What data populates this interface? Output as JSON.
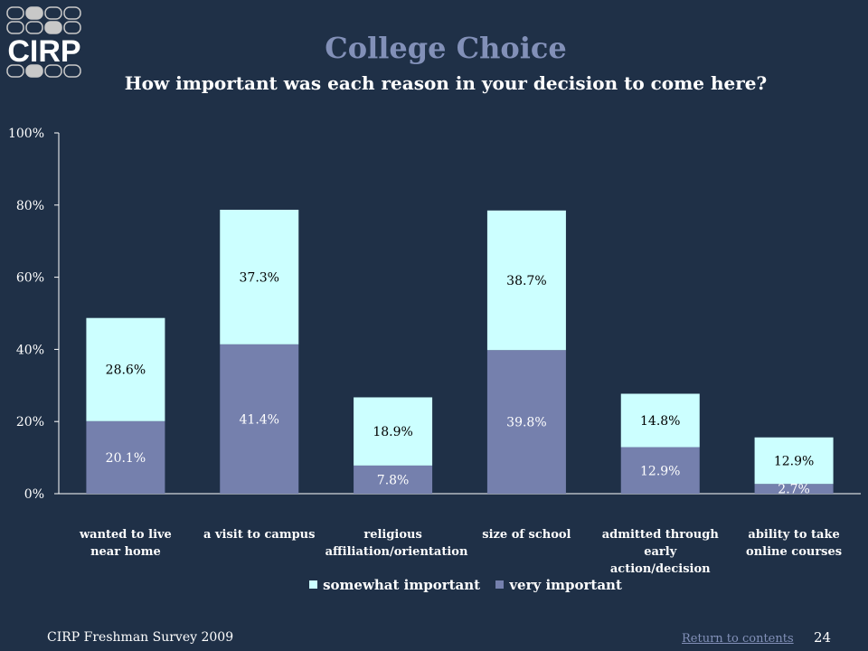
{
  "logo": {
    "text": "CIRP"
  },
  "title": "College Choice",
  "subtitle": "How important was each reason in your decision to come here?",
  "chart_data": {
    "type": "bar",
    "stacked": true,
    "categories": [
      [
        "wanted to live",
        "near home"
      ],
      [
        "a visit to campus"
      ],
      [
        "religious",
        "affiliation/orientation"
      ],
      [
        "size of school"
      ],
      [
        "admitted through",
        "early action/decision"
      ],
      [
        "ability to take",
        "online courses"
      ]
    ],
    "series": [
      {
        "name": "very important",
        "color": "#7580ad",
        "values": [
          20.1,
          41.4,
          7.8,
          39.8,
          12.9,
          2.7
        ]
      },
      {
        "name": "somewhat important",
        "color": "#ccffff",
        "values": [
          28.6,
          37.3,
          18.9,
          38.7,
          14.8,
          12.9
        ]
      }
    ],
    "data_labels": {
      "very important": [
        "20.1%",
        "41.4%",
        "7.8%",
        "39.8%",
        "12.9%",
        "2.7%"
      ],
      "somewhat important": [
        "28.6%",
        "37.3%",
        "18.9%",
        "38.7%",
        "14.8%",
        "12.9%"
      ]
    },
    "y_ticks": [
      "0%",
      "20%",
      "40%",
      "60%",
      "80%",
      "100%"
    ],
    "ylim": [
      0,
      100
    ],
    "grid": false,
    "legend_position": "bottom",
    "legend": [
      {
        "name": "somewhat important",
        "color": "#ccffff"
      },
      {
        "name": "very important",
        "color": "#7580ad"
      }
    ]
  },
  "footer": {
    "survey": "CIRP Freshman Survey 2009",
    "link": "Return to contents",
    "page": "24"
  }
}
